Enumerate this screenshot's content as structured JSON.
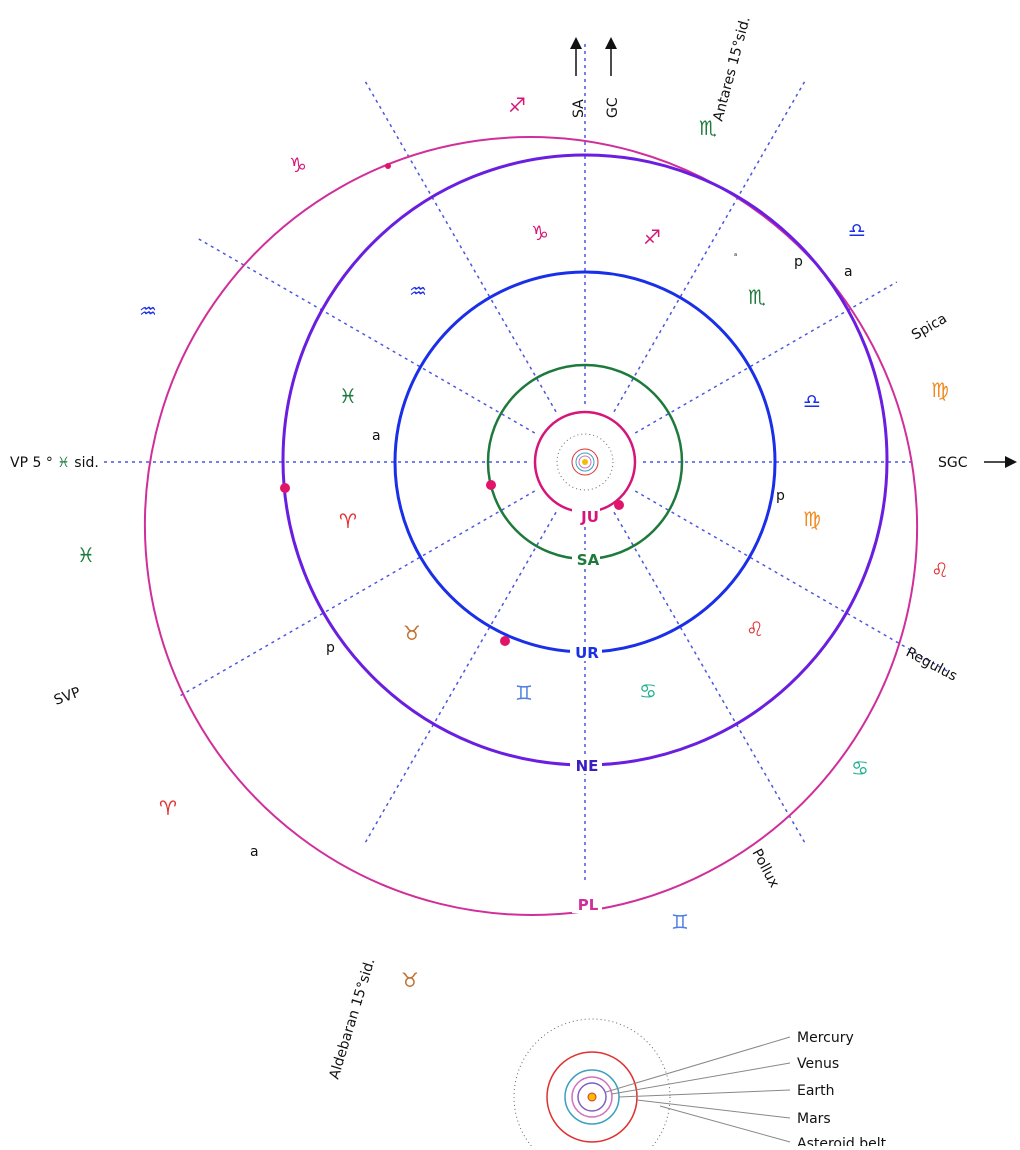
{
  "labels": {
    "sa": "SA",
    "gc": "GC",
    "antares": "Antares 15°sid.",
    "spica": "Spica",
    "sgc": "SGC",
    "regulus": "Regulus",
    "pollux": "Pollux",
    "aldebaran": "Aldebaran 15°sid.",
    "svp": "SVP",
    "vp_prefix": "VP 5 °",
    "vp_symbol": "♓",
    "vp_suffix": "sid."
  },
  "planets": [
    "JU",
    "SA",
    "UR",
    "NE",
    "PL"
  ],
  "orbit_marks": [
    "a",
    "p",
    "a",
    "p",
    "p",
    "a",
    "a"
  ],
  "inner_zodiac": [
    "♑",
    "♐",
    "♏",
    "♎",
    "♍",
    "♌",
    "♋",
    "♊",
    "♉",
    "♈",
    "♓",
    "♒"
  ],
  "outer_zodiac": [
    "♐",
    "♑",
    "♒",
    "♓",
    "♈",
    "♉",
    "♊",
    "♋",
    "♌",
    "♍",
    "♎",
    "♏"
  ],
  "legend": [
    "Mercury",
    "Venus",
    "Earth",
    "Mars",
    "Asteroid belt"
  ]
}
